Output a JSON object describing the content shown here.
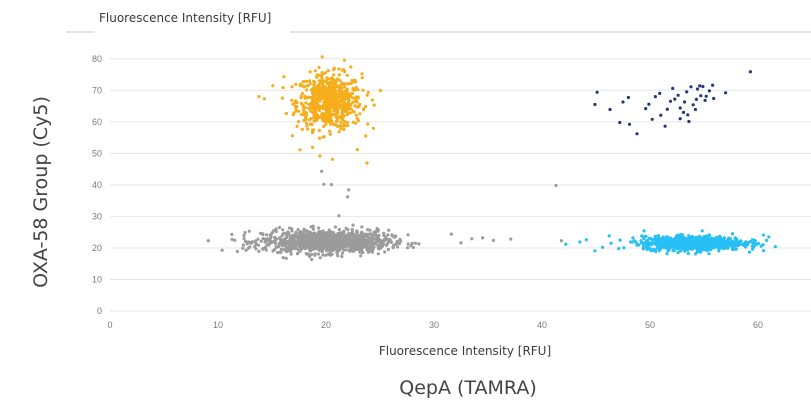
{
  "chart_data": {
    "type": "scatter",
    "title": "Fluorescence Intensity [RFU]",
    "xlabel": "Fluorescence Intensity [RFU]",
    "ylabel": "OXA-58 Group (Cy5)",
    "outer_xlabel": "QepA (TAMRA)",
    "xlim": [
      0,
      65
    ],
    "ylim": [
      0,
      85
    ],
    "x_ticks": [
      "0",
      "10",
      "20",
      "30",
      "40",
      "50",
      "60"
    ],
    "y_ticks": [
      "0",
      "10",
      "20",
      "30",
      "40",
      "50",
      "60",
      "70",
      "80"
    ],
    "grid": "horizontal",
    "legend": "none",
    "series": [
      {
        "color": "#f5ad1b",
        "cluster": {
          "cx": 20.3,
          "cy": 66.5,
          "sx": 1.5,
          "sy": 4.3,
          "n": 650
        },
        "points": [
          [
            14.3,
            67.3
          ],
          [
            13.8,
            68.0
          ],
          [
            17.6,
            51.1
          ],
          [
            23.8,
            46.9
          ],
          [
            22.9,
            51.2
          ],
          [
            21.7,
            79.5
          ],
          [
            22.3,
            77.4
          ],
          [
            19.4,
            54.8
          ],
          [
            24.3,
            66.9
          ],
          [
            16.1,
            74.3
          ],
          [
            23.0,
            60.4
          ],
          [
            20.6,
            48.1
          ]
        ]
      },
      {
        "color": "#9b9b9b",
        "cluster": {
          "cx": 20.0,
          "cy": 22.0,
          "sx": 2.9,
          "sy": 1.8,
          "n": 1100
        },
        "points": [
          [
            12.7,
            21.3
          ],
          [
            14.0,
            22.1
          ],
          [
            13.4,
            20.5
          ],
          [
            25.7,
            22.7
          ],
          [
            26.6,
            22.1
          ],
          [
            24.9,
            24.0
          ],
          [
            19.8,
            40.2
          ],
          [
            20.5,
            40.1
          ],
          [
            19.6,
            44.3
          ],
          [
            22.1,
            38.4
          ],
          [
            22.0,
            36.2
          ],
          [
            21.2,
            30.2
          ],
          [
            31.6,
            24.4
          ],
          [
            32.5,
            21.6
          ],
          [
            33.5,
            22.9
          ],
          [
            34.5,
            23.2
          ],
          [
            35.5,
            22.4
          ],
          [
            37.1,
            22.8
          ],
          [
            41.3,
            39.8
          ],
          [
            41.8,
            22.3
          ]
        ]
      },
      {
        "color": "#27bff5",
        "cluster": {
          "cx": 54.0,
          "cy": 21.5,
          "sx": 2.3,
          "sy": 1.1,
          "n": 850
        },
        "points": [
          [
            42.2,
            21.2
          ],
          [
            43.5,
            21.9
          ],
          [
            44.1,
            22.6
          ],
          [
            45.6,
            20.2
          ],
          [
            46.4,
            21.5
          ],
          [
            47.1,
            19.8
          ],
          [
            48.2,
            21.9
          ],
          [
            48.8,
            20.9
          ],
          [
            49.7,
            22.1
          ],
          [
            57.9,
            23.2
          ],
          [
            59.3,
            22.0
          ],
          [
            60.5,
            24.1
          ],
          [
            61.0,
            23.5
          ],
          [
            60.8,
            22.4
          ],
          [
            58.6,
            21.2
          ],
          [
            44.9,
            19.1
          ]
        ]
      },
      {
        "color": "#253775",
        "points": [
          [
            45.1,
            69.4
          ],
          [
            44.9,
            65.5
          ],
          [
            46.3,
            63.9
          ],
          [
            47.2,
            59.8
          ],
          [
            47.5,
            66.3
          ],
          [
            48.0,
            67.7
          ],
          [
            48.1,
            59.2
          ],
          [
            48.8,
            56.2
          ],
          [
            49.6,
            64.2
          ],
          [
            49.9,
            65.6
          ],
          [
            50.2,
            60.8
          ],
          [
            50.5,
            68.0
          ],
          [
            50.9,
            69.0
          ],
          [
            51.0,
            62.1
          ],
          [
            51.4,
            58.6
          ],
          [
            51.6,
            64.0
          ],
          [
            51.9,
            66.5
          ],
          [
            52.1,
            70.6
          ],
          [
            52.3,
            67.2
          ],
          [
            52.6,
            68.4
          ],
          [
            52.8,
            64.4
          ],
          [
            52.8,
            61.0
          ],
          [
            53.1,
            63.0
          ],
          [
            53.2,
            66.3
          ],
          [
            53.4,
            69.5
          ],
          [
            53.5,
            62.2
          ],
          [
            53.6,
            60.1
          ],
          [
            53.8,
            71.1
          ],
          [
            54.0,
            65.4
          ],
          [
            54.2,
            63.9
          ],
          [
            54.3,
            67.1
          ],
          [
            54.4,
            70.4
          ],
          [
            54.6,
            71.4
          ],
          [
            54.7,
            68.3
          ],
          [
            54.9,
            71.2
          ],
          [
            55.1,
            66.8
          ],
          [
            55.2,
            68.1
          ],
          [
            55.5,
            69.8
          ],
          [
            55.8,
            71.6
          ],
          [
            55.9,
            67.4
          ],
          [
            57.0,
            69.2
          ],
          [
            59.3,
            75.9
          ]
        ]
      }
    ]
  }
}
